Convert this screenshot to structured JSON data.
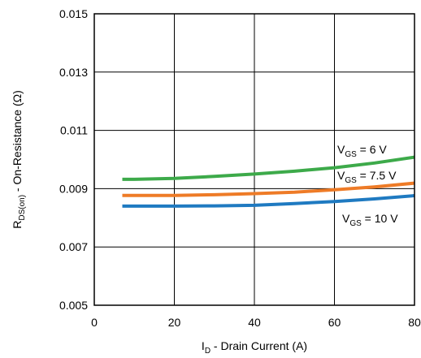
{
  "chart_data": {
    "type": "line",
    "xlabel": {
      "prefix": "I",
      "sub": "D",
      "rest": " - Drain Current (A)"
    },
    "ylabel": {
      "prefix": "R",
      "sub": "DS(on)",
      "rest": " - On-Resistance (Ω)"
    },
    "xlim": [
      0,
      80
    ],
    "ylim": [
      0.005,
      0.015
    ],
    "xticks": [
      0,
      20,
      40,
      60,
      80
    ],
    "xtick_labels": [
      "0",
      "20",
      "40",
      "60",
      "80"
    ],
    "yticks": [
      0.005,
      0.007,
      0.009,
      0.011,
      0.013,
      0.015
    ],
    "ytick_labels": [
      "0.005",
      "0.007",
      "0.009",
      "0.011",
      "0.013",
      "0.015"
    ],
    "grid": true,
    "series": [
      {
        "name": "VGS = 6 V",
        "label": {
          "prefix": "V",
          "sub": "GS",
          "rest": " = 6 V"
        },
        "color": "#3daa4a",
        "x": [
          7,
          10,
          20,
          30,
          40,
          50,
          60,
          70,
          80
        ],
        "y": [
          0.00932,
          0.00932,
          0.00935,
          0.00942,
          0.0095,
          0.0096,
          0.00972,
          0.00988,
          0.01008
        ]
      },
      {
        "name": "VGS = 7.5 V",
        "label": {
          "prefix": "V",
          "sub": "GS",
          "rest": " = 7.5 V"
        },
        "color": "#ee7b27",
        "x": [
          7,
          10,
          20,
          30,
          40,
          50,
          60,
          70,
          80
        ],
        "y": [
          0.00877,
          0.00877,
          0.00877,
          0.00879,
          0.00883,
          0.00888,
          0.00896,
          0.00906,
          0.00919
        ]
      },
      {
        "name": "VGS = 10 V",
        "label": {
          "prefix": "V",
          "sub": "GS",
          "rest": " = 10 V"
        },
        "color": "#1f7ac1",
        "x": [
          7,
          10,
          20,
          30,
          40,
          50,
          60,
          70,
          80
        ],
        "y": [
          0.0084,
          0.0084,
          0.0084,
          0.00841,
          0.00843,
          0.00849,
          0.00856,
          0.00865,
          0.00876
        ]
      }
    ]
  }
}
